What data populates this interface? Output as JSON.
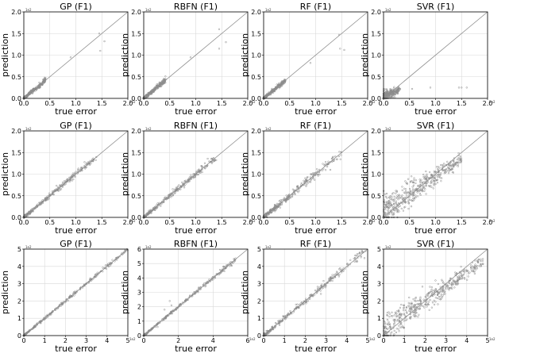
{
  "chart_data": [
    {
      "type": "scatter",
      "title": "GP (F1)",
      "xlabel": "true error",
      "ylabel": "prediction",
      "xlim": [
        0,
        2
      ],
      "ylim": [
        0,
        2
      ],
      "xticks": [
        "0.0",
        "0.5",
        "1.0",
        "1.5",
        "2.0"
      ],
      "yticks": [
        "0.0",
        "0.5",
        "1.0",
        "1.5",
        "2.0"
      ],
      "offset_label": "1e2",
      "grid": true,
      "diagonal": true,
      "series": [
        {
          "pattern": "tight",
          "xmax": 0.42,
          "sigma": 0.02
        },
        {
          "points": [
            [
              0.9,
              0.95
            ],
            [
              1.45,
              1.5
            ],
            [
              1.47,
              1.1
            ],
            [
              1.55,
              1.32
            ]
          ]
        }
      ]
    },
    {
      "type": "scatter",
      "title": "RBFN (F1)",
      "xlabel": "true error",
      "ylabel": "prediction",
      "xlim": [
        0,
        2
      ],
      "ylim": [
        0,
        2
      ],
      "xticks": [
        "0.0",
        "0.5",
        "1.0",
        "1.5",
        "2.0"
      ],
      "yticks": [
        "0.0",
        "0.5",
        "1.0",
        "1.5",
        "2.0"
      ],
      "offset_label": "1e2",
      "grid": true,
      "diagonal": true,
      "series": [
        {
          "pattern": "tight",
          "xmax": 0.42,
          "sigma": 0.02
        },
        {
          "points": [
            [
              0.9,
              0.95
            ],
            [
              1.45,
              1.6
            ],
            [
              1.45,
              1.15
            ],
            [
              1.58,
              1.3
            ]
          ]
        }
      ]
    },
    {
      "type": "scatter",
      "title": "RF (F1)",
      "xlabel": "true error",
      "ylabel": "prediction",
      "xlim": [
        0,
        2
      ],
      "ylim": [
        0,
        2
      ],
      "xticks": [
        "0.0",
        "0.5",
        "1.0",
        "1.5",
        "2.0"
      ],
      "yticks": [
        "0.0",
        "0.5",
        "1.0",
        "1.5",
        "2.0"
      ],
      "offset_label": "1e2",
      "grid": true,
      "diagonal": true,
      "series": [
        {
          "pattern": "tight",
          "xmax": 0.42,
          "sigma": 0.02
        },
        {
          "points": [
            [
              0.9,
              0.82
            ],
            [
              1.45,
              1.47
            ],
            [
              1.47,
              1.15
            ],
            [
              1.55,
              1.12
            ]
          ]
        }
      ]
    },
    {
      "type": "scatter",
      "title": "SVR (F1)",
      "xlabel": "true error",
      "ylabel": "prediction",
      "xlim": [
        0,
        2
      ],
      "ylim": [
        0,
        2
      ],
      "xticks": [
        "0.0",
        "0.5",
        "1.0",
        "1.5",
        "2.0"
      ],
      "yticks": [
        "0.0",
        "0.5",
        "1.0",
        "1.5",
        "2.0"
      ],
      "offset_label": "1e2",
      "grid": true,
      "diagonal": true,
      "series": [
        {
          "pattern": "flat",
          "xmax": 0.32,
          "ybase": 0.12,
          "sigma": 0.05
        },
        {
          "points": [
            [
              0.55,
              0.22
            ],
            [
              0.9,
              0.25
            ],
            [
              1.45,
              0.25
            ],
            [
              1.5,
              0.25
            ],
            [
              1.6,
              0.25
            ]
          ]
        }
      ]
    },
    {
      "type": "scatter",
      "title": "GP (F1)",
      "xlabel": "true error",
      "ylabel": "prediction",
      "xlim": [
        0,
        2
      ],
      "ylim": [
        0,
        2
      ],
      "xticks": [
        "0.0",
        "0.5",
        "1.0",
        "1.5",
        "2.0"
      ],
      "yticks": [
        "0.0",
        "0.5",
        "1.0",
        "1.5",
        "2.0"
      ],
      "offset_label": "1e2",
      "grid": true,
      "diagonal": true,
      "series": [
        {
          "pattern": "tight",
          "xmax": 1.4,
          "sigma": 0.025
        }
      ]
    },
    {
      "type": "scatter",
      "title": "RBFN (F1)",
      "xlabel": "true error",
      "ylabel": "prediction",
      "xlim": [
        0,
        2
      ],
      "ylim": [
        0,
        2
      ],
      "xticks": [
        "0.0",
        "0.5",
        "1.0",
        "1.5",
        "2.0"
      ],
      "yticks": [
        "0.0",
        "0.5",
        "1.0",
        "1.5",
        "2.0"
      ],
      "offset_label": "1e2",
      "grid": true,
      "diagonal": true,
      "series": [
        {
          "pattern": "tight",
          "xmax": 1.45,
          "sigma": 0.03
        }
      ]
    },
    {
      "type": "scatter",
      "title": "RF (F1)",
      "xlabel": "true error",
      "ylabel": "prediction",
      "xlim": [
        0,
        2
      ],
      "ylim": [
        0,
        2
      ],
      "xticks": [
        "0.0",
        "0.5",
        "1.0",
        "1.5",
        "2.0"
      ],
      "yticks": [
        "0.0",
        "0.5",
        "1.0",
        "1.5",
        "2.0"
      ],
      "offset_label": "1e2",
      "grid": true,
      "diagonal": true,
      "series": [
        {
          "pattern": "tight",
          "xmax": 1.5,
          "sigma": 0.045
        }
      ]
    },
    {
      "type": "scatter",
      "title": "SVR (F1)",
      "xlabel": "true error",
      "ylabel": "prediction",
      "xlim": [
        0,
        2
      ],
      "ylim": [
        0,
        2
      ],
      "xticks": [
        "0.0",
        "0.5",
        "1.0",
        "1.5",
        "2.0"
      ],
      "yticks": [
        "0.0",
        "0.5",
        "1.0",
        "1.5",
        "2.0"
      ],
      "offset_label": "1e2",
      "grid": true,
      "diagonal": true,
      "series": [
        {
          "pattern": "svr",
          "xmax": 1.5,
          "sigma": 0.12
        }
      ]
    },
    {
      "type": "scatter",
      "title": "GP (F1)",
      "xlabel": "true error",
      "ylabel": "prediction",
      "xlim": [
        0,
        5
      ],
      "ylim": [
        0,
        5
      ],
      "xticks": [
        "0",
        "1",
        "2",
        "3",
        "4",
        "5"
      ],
      "yticks": [
        "0",
        "1",
        "2",
        "3",
        "4",
        "5"
      ],
      "offset_label": "1e2",
      "grid": true,
      "diagonal": true,
      "series": [
        {
          "pattern": "tight",
          "xmax": 5,
          "sigma": 0.04
        }
      ]
    },
    {
      "type": "scatter",
      "title": "RBFN (F1)",
      "xlabel": "true error",
      "ylabel": "prediction",
      "xlim": [
        0,
        6
      ],
      "ylim": [
        0,
        6
      ],
      "xticks": [
        "0",
        "2",
        "4",
        "6"
      ],
      "yticks": [
        "0",
        "1",
        "2",
        "3",
        "4",
        "5",
        "6"
      ],
      "offset_label": "1e2",
      "grid": true,
      "diagonal": true,
      "series": [
        {
          "pattern": "tight",
          "xmax": 5.3,
          "sigma": 0.05
        },
        {
          "points": [
            [
              1.5,
              2.4
            ],
            [
              1.6,
              2.1
            ],
            [
              1.2,
              1.8
            ],
            [
              0.8,
              0.6
            ]
          ]
        }
      ]
    },
    {
      "type": "scatter",
      "title": "RF (F1)",
      "xlabel": "true error",
      "ylabel": "prediction",
      "xlim": [
        0,
        5
      ],
      "ylim": [
        0,
        5
      ],
      "xticks": [
        "0",
        "1",
        "2",
        "3",
        "4",
        "5"
      ],
      "yticks": [
        "0",
        "1",
        "2",
        "3",
        "4",
        "5"
      ],
      "offset_label": "1e2",
      "grid": true,
      "diagonal": true,
      "series": [
        {
          "pattern": "tight",
          "xmax": 4.9,
          "sigma": 0.09
        }
      ]
    },
    {
      "type": "scatter",
      "title": "SVR (F1)",
      "xlabel": "true error",
      "ylabel": "prediction",
      "xlim": [
        0,
        5
      ],
      "ylim": [
        0,
        5
      ],
      "xticks": [
        "0",
        "1",
        "2",
        "3",
        "4",
        "5"
      ],
      "yticks": [
        "0",
        "1",
        "2",
        "3",
        "4",
        "5"
      ],
      "offset_label": "1e2",
      "grid": true,
      "diagonal": true,
      "series": [
        {
          "pattern": "svr",
          "xmax": 4.8,
          "sigma": 0.3
        }
      ]
    }
  ],
  "colors": {
    "points": "#8c8c8c",
    "diagonal": "#8c8c8c",
    "grid": "#d9d9d9",
    "axis": "#000000"
  }
}
